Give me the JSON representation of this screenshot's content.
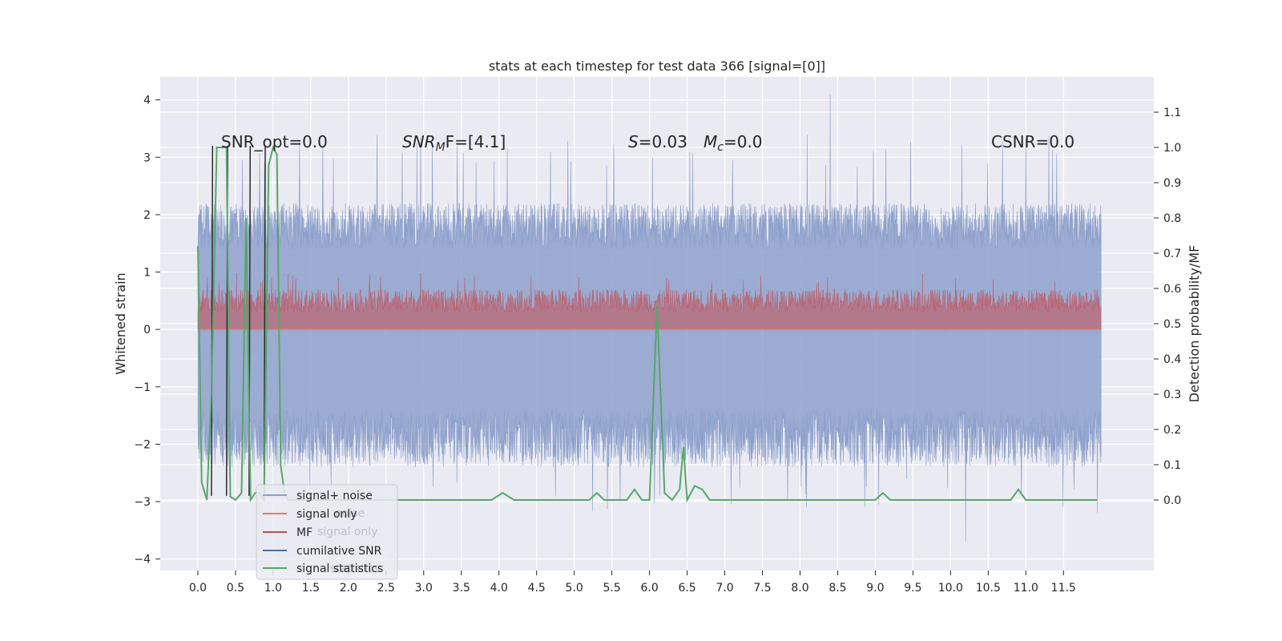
{
  "chart_data": {
    "type": "line",
    "title": "stats at each timestep for test data 366 [signal=[0]]",
    "xlabel": "",
    "ylabel": "Whitened strain",
    "ylabel_right": "Detection probability/MF",
    "xlim": [
      -0.5,
      12.7
    ],
    "ylim": [
      -4.2,
      4.4
    ],
    "ylim_right": [
      -0.2,
      1.2
    ],
    "x_ticks": [
      0.0,
      0.5,
      1.0,
      1.5,
      2.0,
      2.5,
      3.0,
      3.5,
      4.0,
      4.5,
      5.0,
      5.5,
      6.0,
      6.5,
      7.0,
      7.5,
      8.0,
      8.5,
      9.0,
      9.5,
      10.0,
      10.5,
      11.0,
      11.5
    ],
    "x_tick_labels": [
      "0.0",
      "0.5",
      "1.0",
      "1.5",
      "2.0",
      "2.5",
      "3.0",
      "3.5",
      "4.0",
      "4.5",
      "5.0",
      "5.5",
      "6.0",
      "6.5",
      "7.0",
      "7.5",
      "8.0",
      "8.5",
      "9.0",
      "9.5",
      "10.0",
      "10.5",
      "11.0",
      "11.5"
    ],
    "y_ticks": [
      4,
      3,
      2,
      1,
      0,
      -1,
      -2,
      -3,
      -4
    ],
    "y_tick_labels": [
      "4",
      "3",
      "2",
      "1",
      "0",
      "−1",
      "−2",
      "−3",
      "−4"
    ],
    "y_right_ticks": [
      1.1,
      1.0,
      0.9,
      0.8,
      0.7,
      0.6,
      0.5,
      0.4,
      0.3,
      0.2,
      0.1,
      0.0
    ],
    "y_right_tick_labels": [
      "1.1",
      "1.0",
      "0.9",
      "0.8",
      "0.7",
      "0.6",
      "0.5",
      "0.4",
      "0.3",
      "0.2",
      "0.1",
      "0.0"
    ],
    "grid": true,
    "legend_position": "lower-left",
    "legend": [
      {
        "label": "signal+ noise",
        "color": "#8da0cb"
      },
      {
        "label": "signal only",
        "color": "#dd8452"
      },
      {
        "label": "MF",
        "color": "#c44e52"
      },
      {
        "label": "cumilative SNR",
        "color": "#4c72b0"
      },
      {
        "label": "signal statistics",
        "color": "#55a868"
      }
    ],
    "legend_ghost": [
      {
        "label": "noise",
        "color": "#c0c0c8"
      },
      {
        "label": "signal only",
        "color": "#c0c0c8"
      },
      {
        "label": "statistics",
        "color": "#c0c0c8"
      }
    ],
    "annotations": [
      {
        "id": "snr-opt",
        "text": "SNR_opt=0.0",
        "x": 0.2,
        "y_right": 1.0
      },
      {
        "id": "snr-mf",
        "prefix": "SNR",
        "sub": "M",
        "suffix": "F=[4.1]",
        "x": 2.6,
        "y_right": 1.0
      },
      {
        "id": "s-stat",
        "prefix": "S",
        "suffix": "=0.03",
        "x": 5.6,
        "y_right": 1.0
      },
      {
        "id": "mc",
        "prefix": "M",
        "sub": "c",
        "suffix": "=0.0",
        "x": 6.6,
        "y_right": 1.0
      },
      {
        "id": "csnr",
        "text": "CSNR=0.0",
        "x": 10.4,
        "y_right": 1.0
      }
    ],
    "noise_band": {
      "x_start": 0.0,
      "x_end": 12.0,
      "upper_typical": [
        1.4,
        2.2
      ],
      "lower_typical": [
        -1.4,
        -2.4
      ],
      "max": 4.1,
      "min": -3.7
    },
    "mf_band": {
      "x_start": 0.0,
      "x_end": 12.0,
      "lower": 0.0,
      "upper_typical": [
        0.3,
        0.7
      ],
      "max": 1.0
    },
    "signal_only": {
      "x": [
        0.0,
        12.0
      ],
      "y": [
        0.0,
        0.0
      ]
    },
    "cumulative_snr_spikes": {
      "x": [
        0.18,
        0.38,
        0.68,
        0.88
      ],
      "low": -2.9,
      "high": 3.2
    },
    "signal_statistics": {
      "x": [
        0.0,
        0.05,
        0.12,
        0.18,
        0.25,
        0.32,
        0.38,
        0.43,
        0.5,
        0.58,
        0.64,
        0.7,
        0.76,
        0.82,
        0.88,
        0.94,
        1.0,
        1.05,
        1.1,
        1.15,
        1.2,
        1.3,
        1.5,
        2.0,
        2.5,
        3.0,
        3.5,
        3.9,
        4.05,
        4.2,
        4.5,
        5.0,
        5.2,
        5.3,
        5.4,
        5.6,
        5.7,
        5.8,
        5.9,
        6.0,
        6.1,
        6.2,
        6.3,
        6.4,
        6.45,
        6.5,
        6.6,
        6.7,
        6.8,
        7.0,
        7.5,
        8.0,
        8.5,
        9.0,
        9.1,
        9.2,
        9.5,
        10.0,
        10.5,
        10.8,
        10.9,
        11.0,
        11.1,
        11.5,
        11.95
      ],
      "y": [
        0.72,
        0.05,
        0.0,
        0.3,
        1.0,
        1.0,
        1.0,
        0.01,
        0.0,
        0.02,
        0.8,
        0.0,
        0.02,
        0.02,
        0.0,
        0.95,
        1.0,
        0.98,
        0.1,
        0.02,
        0.0,
        0.0,
        0.0,
        0.0,
        0.0,
        0.0,
        0.0,
        0.0,
        0.02,
        0.0,
        0.0,
        0.0,
        0.0,
        0.02,
        0.0,
        0.0,
        0.0,
        0.03,
        0.0,
        0.0,
        0.55,
        0.02,
        0.0,
        0.03,
        0.15,
        0.0,
        0.04,
        0.03,
        0.0,
        0.0,
        0.0,
        0.0,
        0.0,
        0.0,
        0.02,
        0.0,
        0.0,
        0.0,
        0.0,
        0.0,
        0.03,
        0.0,
        0.0,
        0.0,
        0.0
      ]
    }
  }
}
